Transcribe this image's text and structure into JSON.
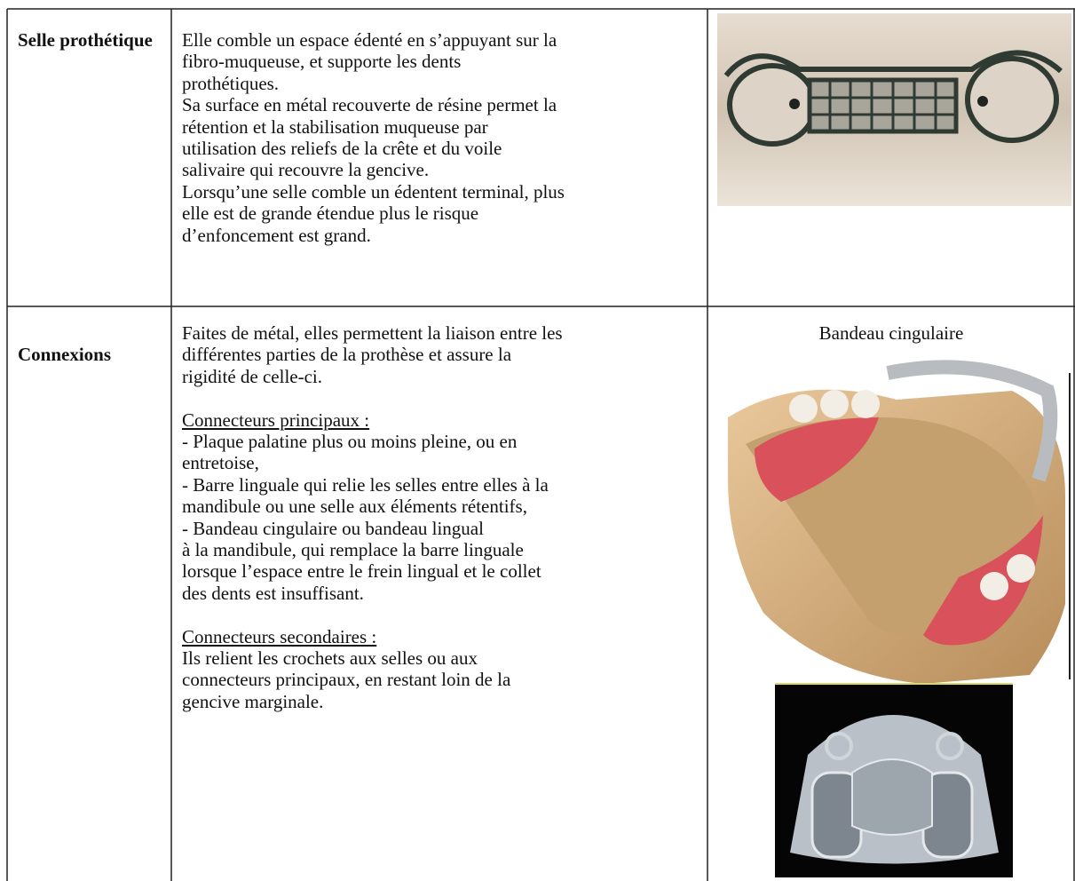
{
  "table": {
    "rows": [
      {
        "label": "Selle prothétique",
        "lines": [
          "Elle comble un espace édenté en s’appuyant sur la",
          "fibro-muqueuse, et supporte les dents",
          "prothétiques.",
          "Sa surface en métal recouverte de résine permet la",
          "rétention et la stabilisation muqueuse par",
          "utilisation des reliefs de la crête et du voile",
          "salivaire qui recouvre la gencive.",
          "Lorsqu’une selle comble un édentent terminal, plus",
          "elle est de grande étendue plus le risque",
          "d’enfoncement est grand."
        ]
      },
      {
        "label": "Connexions",
        "intro": [
          "Faites de métal, elles permettent la liaison entre les",
          "différentes parties de la prothèse et assure la",
          "rigidité de celle-ci."
        ],
        "sections": [
          {
            "heading": "Connecteurs principaux :",
            "lines": [
              "- Plaque palatine plus ou moins pleine, ou en",
              "entretoise,",
              "- Barre linguale qui relie les selles entre elles à la",
              "mandibule ou une selle aux éléments rétentifs,",
              "- Bandeau cingulaire ou bandeau lingual",
              "à la mandibule, qui remplace la barre linguale",
              "lorsque l’espace entre le frein lingual et le collet",
              "des dents est insuffisant."
            ]
          },
          {
            "heading": "Connecteurs secondaires :",
            "lines": [
              "Ils relient les crochets aux selles ou aux",
              "connecteurs principaux, en restant loin de la",
              "gencive marginale."
            ]
          }
        ],
        "caption": "Bandeau cingulaire"
      }
    ]
  }
}
